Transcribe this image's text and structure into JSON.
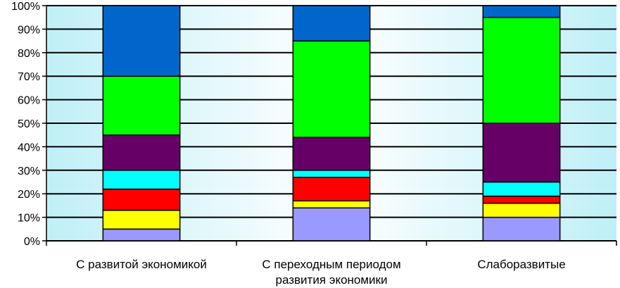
{
  "chart_data": {
    "type": "bar",
    "stacked": true,
    "categories": [
      [
        "С развитой экономикой"
      ],
      [
        "С переходным периодом",
        "развития экономики"
      ],
      [
        "Слаборазвитые"
      ]
    ],
    "y_ticks": [
      "0%",
      "10%",
      "20%",
      "30%",
      "40%",
      "50%",
      "60%",
      "70%",
      "80%",
      "90%",
      "100%"
    ],
    "ylim": [
      0,
      100
    ],
    "grid": true,
    "legend": "none",
    "series": [
      {
        "color": "#9999ff",
        "values": [
          5,
          14,
          10
        ]
      },
      {
        "color": "#ffff00",
        "values": [
          8,
          3,
          6
        ]
      },
      {
        "color": "#ff0000",
        "values": [
          9,
          10,
          3
        ]
      },
      {
        "color": "#00ffff",
        "values": [
          8,
          3,
          6
        ]
      },
      {
        "color": "#660066",
        "values": [
          15,
          14,
          25
        ]
      },
      {
        "color": "#00ff00",
        "values": [
          25,
          41,
          45
        ]
      },
      {
        "color": "#0066cc",
        "values": [
          30,
          15,
          5
        ]
      }
    ]
  }
}
